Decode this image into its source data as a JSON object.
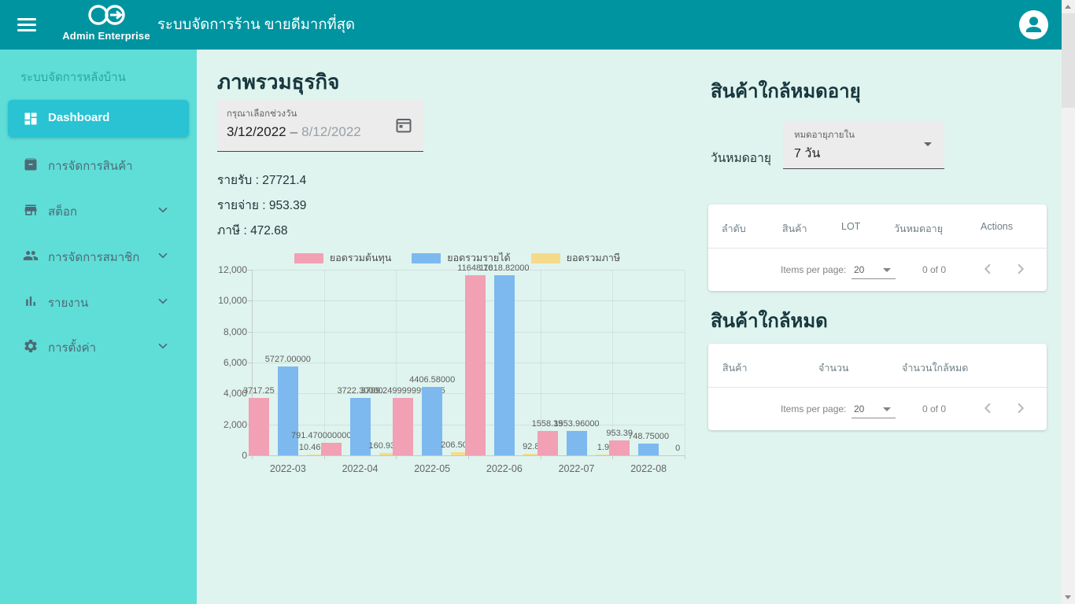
{
  "theme": {
    "appbar_bg": "#0094a0",
    "sidebar_bg": "#5fded8",
    "active_item_bg": "#29c3d3",
    "content_bg": "#dff4ee",
    "card_bg": "#ffffff"
  },
  "appbar": {
    "logo_title": "Admin Enterprise",
    "title": "ระบบจัดการร้าน ขายดีมากที่สุด"
  },
  "sidebar": {
    "section_label": "ระบบจัดการหลังบ้าน",
    "items": [
      {
        "label": "Dashboard",
        "icon": "dashboard-icon",
        "active": true,
        "expandable": false
      },
      {
        "label": "การจัดการสินค้า",
        "icon": "inventory-icon",
        "active": false,
        "expandable": false
      },
      {
        "label": "สต็อก",
        "icon": "store-icon",
        "active": false,
        "expandable": true
      },
      {
        "label": "การจัดการสมาชิก",
        "icon": "members-icon",
        "active": false,
        "expandable": true
      },
      {
        "label": "รายงาน",
        "icon": "report-icon",
        "active": false,
        "expandable": true
      },
      {
        "label": "การตั้งค่า",
        "icon": "settings-icon",
        "active": false,
        "expandable": true
      }
    ]
  },
  "overview": {
    "title": "ภาพรวมธุรกิจ",
    "date_range": {
      "label": "กรุณาเลือกช่วงวัน",
      "start": "3/12/2022",
      "separator": "–",
      "end": "8/12/2022"
    },
    "stats": [
      {
        "label": "รายรับ",
        "value": "27721.4"
      },
      {
        "label": "รายจ่าย",
        "value": "953.39"
      },
      {
        "label": "ภาษี",
        "value": "472.68"
      }
    ]
  },
  "chart_data": {
    "type": "bar",
    "title": "",
    "xlabel": "",
    "ylabel": "",
    "legend_position": "top",
    "grid": true,
    "ylim": [
      0,
      12000
    ],
    "yticks": [
      "12,000",
      "10,000",
      "8,000",
      "6,000",
      "4,000",
      "2,000",
      "0"
    ],
    "categories": [
      "2022-03",
      "2022-04",
      "2022-05",
      "2022-06",
      "2022-07",
      "2022-08"
    ],
    "series": [
      {
        "name": "ยอดรวมต้นทุน",
        "color": "#f2a0b4",
        "values": [
          3717.25,
          791.47,
          3709.25,
          11648.7,
          1558.39,
          953.39
        ],
        "labels": [
          "3717.25",
          "791.4700000000003",
          "3709.2499999999995",
          "11648.70",
          "1558.39",
          "953.39"
        ]
      },
      {
        "name": "ยอดรวมรายได้",
        "color": "#7db9ee",
        "values": [
          5727.0,
          3722.3,
          4406.58,
          11618.82,
          1553.96,
          748.75
        ],
        "labels": [
          "5727.00000",
          "3722.30000",
          "4406.58000",
          "11618.82000",
          "1553.96000",
          "748.75000"
        ]
      },
      {
        "name": "ยอดรวมภาษี",
        "color": "#f6da8b",
        "values": [
          10.46728,
          160.93458,
          206.50523,
          92.82,
          1.96,
          0
        ],
        "labels": [
          "10.46728",
          "160.93458",
          "206.50523",
          "92.82",
          "1.96",
          "0"
        ]
      }
    ]
  },
  "expiring": {
    "title": "สินค้าใกล้หมดอายุ",
    "filter_label": "วันหมดอายุ",
    "select": {
      "label": "หมดอายุภายใน",
      "value": "7 วัน"
    },
    "table": {
      "columns": [
        "ลำดับ",
        "สินค้า",
        "LOT",
        "วันหมดอายุ",
        "Actions"
      ],
      "rows": []
    },
    "paginator": {
      "items_per_page_label": "Items per page:",
      "page_size": "20",
      "range": "0 of 0"
    }
  },
  "low_stock": {
    "title": "สินค้าใกล้หมด",
    "table": {
      "columns": [
        "สินค้า",
        "จำนวน",
        "จำนวนใกล้หมด"
      ],
      "rows": []
    },
    "paginator": {
      "items_per_page_label": "Items per page:",
      "page_size": "20",
      "range": "0 of 0"
    }
  }
}
